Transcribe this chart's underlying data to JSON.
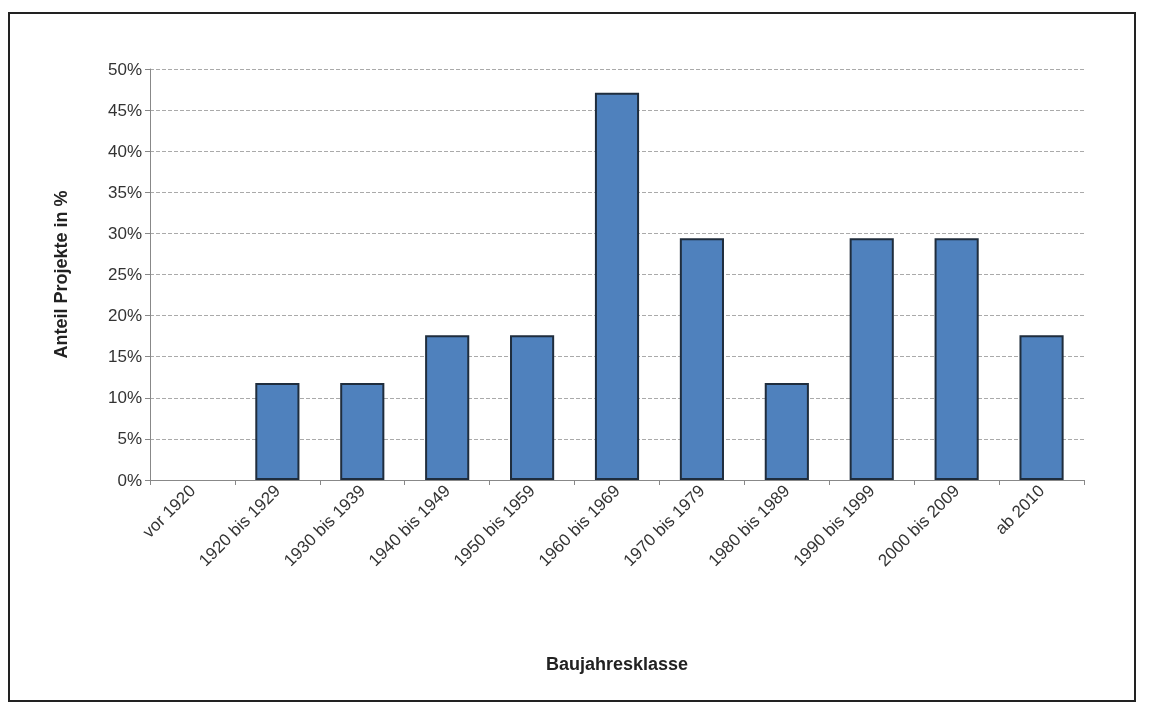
{
  "chart_data": {
    "type": "bar",
    "xlabel": "Baujahresklasse",
    "ylabel": "Anteil Projekte in %",
    "categories": [
      "vor 1920",
      "1920 bis 1929",
      "1930 bis 1939",
      "1940 bis 1949",
      "1950 bis 1959",
      "1960 bis 1969",
      "1970 bis 1979",
      "1980 bis 1989",
      "1990 bis 1999",
      "2000 bis 2009",
      "ab 2010"
    ],
    "values": [
      0,
      11.8,
      11.8,
      17.6,
      17.6,
      47.1,
      29.4,
      11.8,
      29.4,
      29.4,
      17.6
    ],
    "color": "#4f81bd",
    "ylim": [
      0,
      50
    ],
    "yticks": [
      {
        "value": 0,
        "label": "0%"
      },
      {
        "value": 5,
        "label": "5%"
      },
      {
        "value": 10,
        "label": "10%"
      },
      {
        "value": 15,
        "label": "15%"
      },
      {
        "value": 20,
        "label": "20%"
      },
      {
        "value": 25,
        "label": "25%"
      },
      {
        "value": 30,
        "label": "30%"
      },
      {
        "value": 35,
        "label": "35%"
      },
      {
        "value": 40,
        "label": "40%"
      },
      {
        "value": 45,
        "label": "45%"
      },
      {
        "value": 50,
        "label": "50%"
      }
    ],
    "grid": "y"
  }
}
